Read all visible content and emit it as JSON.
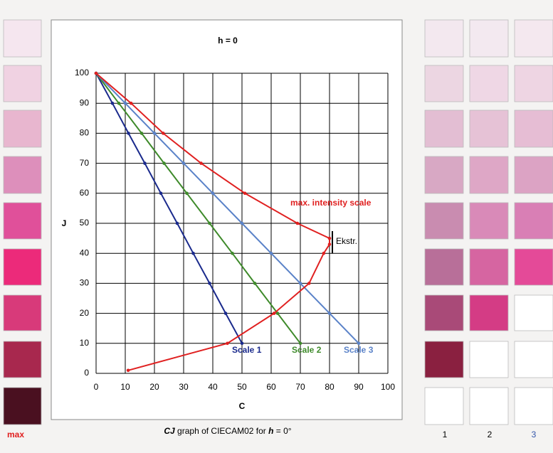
{
  "chart_data": {
    "type": "line",
    "title": "h = 0",
    "xlabel": "C",
    "ylabel": "J",
    "xlim": [
      0,
      100
    ],
    "ylim": [
      0,
      100
    ],
    "xticks": [
      0,
      10,
      20,
      30,
      40,
      50,
      60,
      70,
      80,
      90,
      100
    ],
    "yticks": [
      0,
      10,
      20,
      30,
      40,
      50,
      60,
      70,
      80,
      90,
      100
    ],
    "grid": true,
    "series": [
      {
        "name": "Scale 1",
        "color": "#1a2a8c",
        "x": [
          0,
          5.6,
          11.1,
          16.7,
          22.2,
          27.8,
          33.3,
          38.9,
          44.4,
          50
        ],
        "values": [
          100,
          90,
          80,
          70,
          60,
          50,
          40,
          30,
          20,
          10
        ]
      },
      {
        "name": "Scale 2",
        "color": "#3e8a2a",
        "x": [
          0,
          7.8,
          15.6,
          23.3,
          31.1,
          38.9,
          46.7,
          54.4,
          62.2,
          70
        ],
        "values": [
          100,
          90,
          80,
          70,
          60,
          50,
          40,
          30,
          20,
          10
        ]
      },
      {
        "name": "Scale 3",
        "color": "#5a82c8",
        "x": [
          0,
          10,
          20,
          30,
          40,
          50,
          60,
          70,
          80,
          90
        ],
        "values": [
          100,
          90,
          80,
          70,
          60,
          50,
          40,
          30,
          20,
          10
        ]
      },
      {
        "name": "max. intensity scale",
        "color": "#e02020",
        "x": [
          0,
          12,
          23,
          36,
          51,
          69,
          80,
          80,
          78,
          73,
          61,
          45,
          11
        ],
        "values": [
          100,
          90,
          80,
          70,
          60,
          50,
          45,
          43,
          40,
          30,
          20,
          10,
          1
        ]
      }
    ],
    "annotations": [
      "Ekstr."
    ]
  },
  "left_label": "max",
  "caption": [
    "CJ",
    " graph of CIECAM02 for ",
    "h",
    " = 0°"
  ],
  "column_labels": [
    "1",
    "2",
    "3"
  ]
}
